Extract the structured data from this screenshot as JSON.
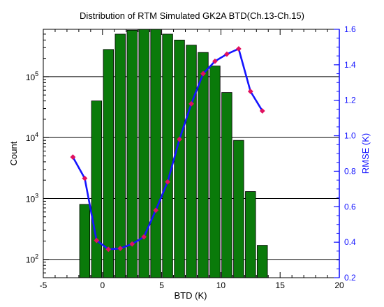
{
  "chart_data": {
    "type": "bar",
    "title": "Distribution of RTM Simulated GK2A BTD(Ch.13-Ch.15)",
    "xlabel": "BTD (K)",
    "ylabel": "Count",
    "y2label": "RMSE (K)",
    "xlim": [
      -5,
      20
    ],
    "xticks": [
      "-5",
      "0",
      "5",
      "10",
      "15",
      "20"
    ],
    "y_scale": "log",
    "ylim": [
      50,
      600000
    ],
    "yticks": [
      {
        "value": 100,
        "base": "10",
        "exp": "2"
      },
      {
        "value": 1000,
        "base": "10",
        "exp": "3"
      },
      {
        "value": 10000,
        "base": "10",
        "exp": "4"
      },
      {
        "value": 100000,
        "base": "10",
        "exp": "5"
      }
    ],
    "y2lim": [
      0.2,
      1.6
    ],
    "y2ticks": [
      "0.2",
      "0.4",
      "0.6",
      "0.8",
      "1.0",
      "1.2",
      "1.4",
      "1.6"
    ],
    "grid": "horizontal lines at major count decades",
    "bar_color": "#0a7a0a",
    "line_color": "#1414ff",
    "marker_color": "#e0115f",
    "series": [
      {
        "kind": "bar",
        "x": [
          -1.5,
          -0.5,
          0.5,
          1.5,
          2.5,
          3.5,
          4.5,
          5.5,
          6.5,
          7.5,
          8.5,
          9.5,
          10.5,
          11.5,
          12.5,
          13.5
        ],
        "values": [
          800,
          40000,
          280000,
          500000,
          580000,
          620000,
          600000,
          500000,
          400000,
          330000,
          250000,
          150000,
          55000,
          9000,
          1300,
          170
        ]
      },
      {
        "kind": "line",
        "axis": "right",
        "x": [
          -2.5,
          -1.5,
          -0.5,
          0.5,
          1.5,
          2.5,
          3.5,
          4.5,
          5.5,
          6.5,
          7.5,
          8.5,
          9.5,
          10.5,
          11.5,
          12.5,
          13.5
        ],
        "values": [
          0.88,
          0.76,
          0.41,
          0.36,
          0.365,
          0.39,
          0.43,
          0.58,
          0.74,
          0.98,
          1.18,
          1.35,
          1.42,
          1.46,
          1.49,
          1.25,
          1.14
        ]
      }
    ]
  }
}
